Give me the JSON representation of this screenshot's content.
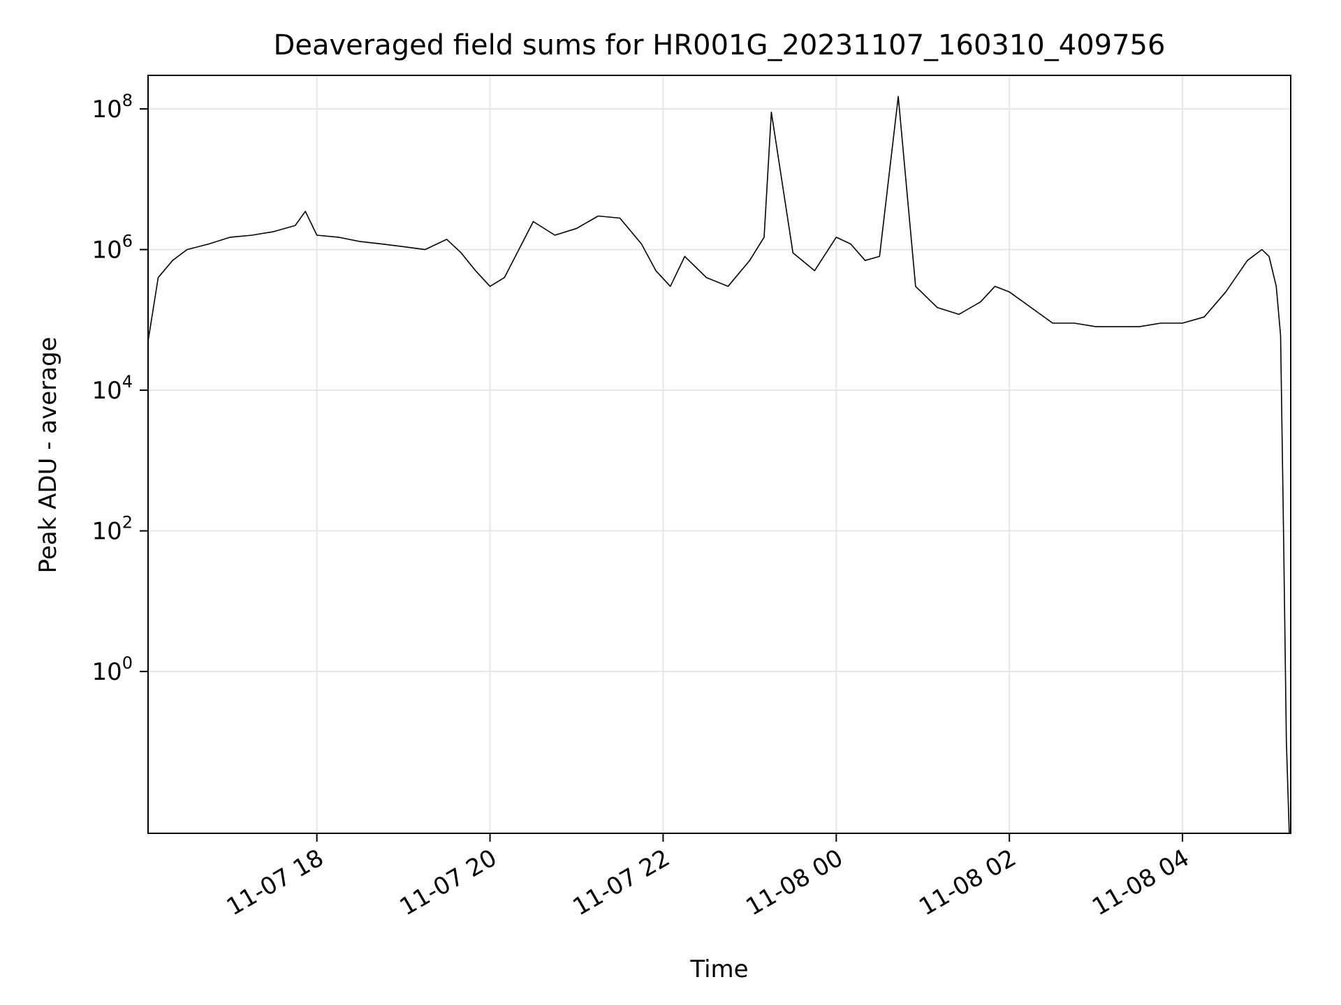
{
  "chart_data": {
    "type": "line",
    "title": "Deaveraged field sums for HR001G_20231107_160310_409756",
    "xlabel": "Time",
    "ylabel": "Peak ADU - average",
    "yscale": "log",
    "xlim": [
      "2023-11-07 16:03",
      "2023-11-08 05:15"
    ],
    "ylim": [
      0.005,
      300000000
    ],
    "grid": true,
    "line_color": "#000000",
    "x_ticks": [
      {
        "label": "11-07 18",
        "value": "2023-11-07 18:00"
      },
      {
        "label": "11-07 20",
        "value": "2023-11-07 20:00"
      },
      {
        "label": "11-07 22",
        "value": "2023-11-07 22:00"
      },
      {
        "label": "11-08 00",
        "value": "2023-11-08 00:00"
      },
      {
        "label": "11-08 02",
        "value": "2023-11-08 02:00"
      },
      {
        "label": "11-08 04",
        "value": "2023-11-08 04:00"
      }
    ],
    "y_ticks": [
      {
        "base": "10",
        "exp": "0",
        "value": 1
      },
      {
        "base": "10",
        "exp": "2",
        "value": 100
      },
      {
        "base": "10",
        "exp": "4",
        "value": 10000
      },
      {
        "base": "10",
        "exp": "6",
        "value": 1000000
      },
      {
        "base": "10",
        "exp": "8",
        "value": 100000000
      }
    ],
    "series": [
      {
        "x": [
          "2023-11-07 16:03",
          "2023-11-07 16:10",
          "2023-11-07 16:20",
          "2023-11-07 16:30",
          "2023-11-07 16:45",
          "2023-11-07 17:00",
          "2023-11-07 17:15",
          "2023-11-07 17:30",
          "2023-11-07 17:45",
          "2023-11-07 17:52",
          "2023-11-07 18:00",
          "2023-11-07 18:15",
          "2023-11-07 18:30",
          "2023-11-07 18:45",
          "2023-11-07 19:00",
          "2023-11-07 19:15",
          "2023-11-07 19:30",
          "2023-11-07 19:40",
          "2023-11-07 19:50",
          "2023-11-07 20:00",
          "2023-11-07 20:10",
          "2023-11-07 20:20",
          "2023-11-07 20:30",
          "2023-11-07 20:45",
          "2023-11-07 21:00",
          "2023-11-07 21:15",
          "2023-11-07 21:30",
          "2023-11-07 21:45",
          "2023-11-07 21:55",
          "2023-11-07 22:05",
          "2023-11-07 22:15",
          "2023-11-07 22:30",
          "2023-11-07 22:45",
          "2023-11-07 23:00",
          "2023-11-07 23:10",
          "2023-11-07 23:15",
          "2023-11-07 23:30",
          "2023-11-07 23:45",
          "2023-11-08 00:00",
          "2023-11-08 00:10",
          "2023-11-08 00:20",
          "2023-11-08 00:30",
          "2023-11-08 00:43",
          "2023-11-08 00:55",
          "2023-11-08 01:10",
          "2023-11-08 01:25",
          "2023-11-08 01:40",
          "2023-11-08 01:50",
          "2023-11-08 02:00",
          "2023-11-08 02:15",
          "2023-11-08 02:30",
          "2023-11-08 02:45",
          "2023-11-08 03:00",
          "2023-11-08 03:15",
          "2023-11-08 03:30",
          "2023-11-08 03:45",
          "2023-11-08 04:00",
          "2023-11-08 04:15",
          "2023-11-08 04:30",
          "2023-11-08 04:45",
          "2023-11-08 04:55",
          "2023-11-08 05:00",
          "2023-11-08 05:05",
          "2023-11-08 05:08",
          "2023-11-08 05:10",
          "2023-11-08 05:12",
          "2023-11-08 05:14"
        ],
        "y": [
          50000,
          400000,
          700000,
          1000000,
          1200000,
          1500000,
          1600000,
          1800000,
          2200000,
          3500000,
          1600000,
          1500000,
          1300000,
          1200000,
          1100000,
          1000000,
          1400000,
          900000,
          500000,
          300000,
          400000,
          1000000,
          2500000,
          1600000,
          2000000,
          3000000,
          2800000,
          1200000,
          500000,
          300000,
          800000,
          400000,
          300000,
          700000,
          1500000,
          90000000,
          900000,
          500000,
          1500000,
          1200000,
          700000,
          800000,
          150000000,
          300000,
          150000,
          120000,
          180000,
          300000,
          250000,
          150000,
          90000,
          90000,
          80000,
          80000,
          80000,
          90000,
          90000,
          110000,
          250000,
          700000,
          1000000,
          800000,
          300000,
          60000,
          100,
          0.1,
          0.005
        ]
      }
    ]
  }
}
